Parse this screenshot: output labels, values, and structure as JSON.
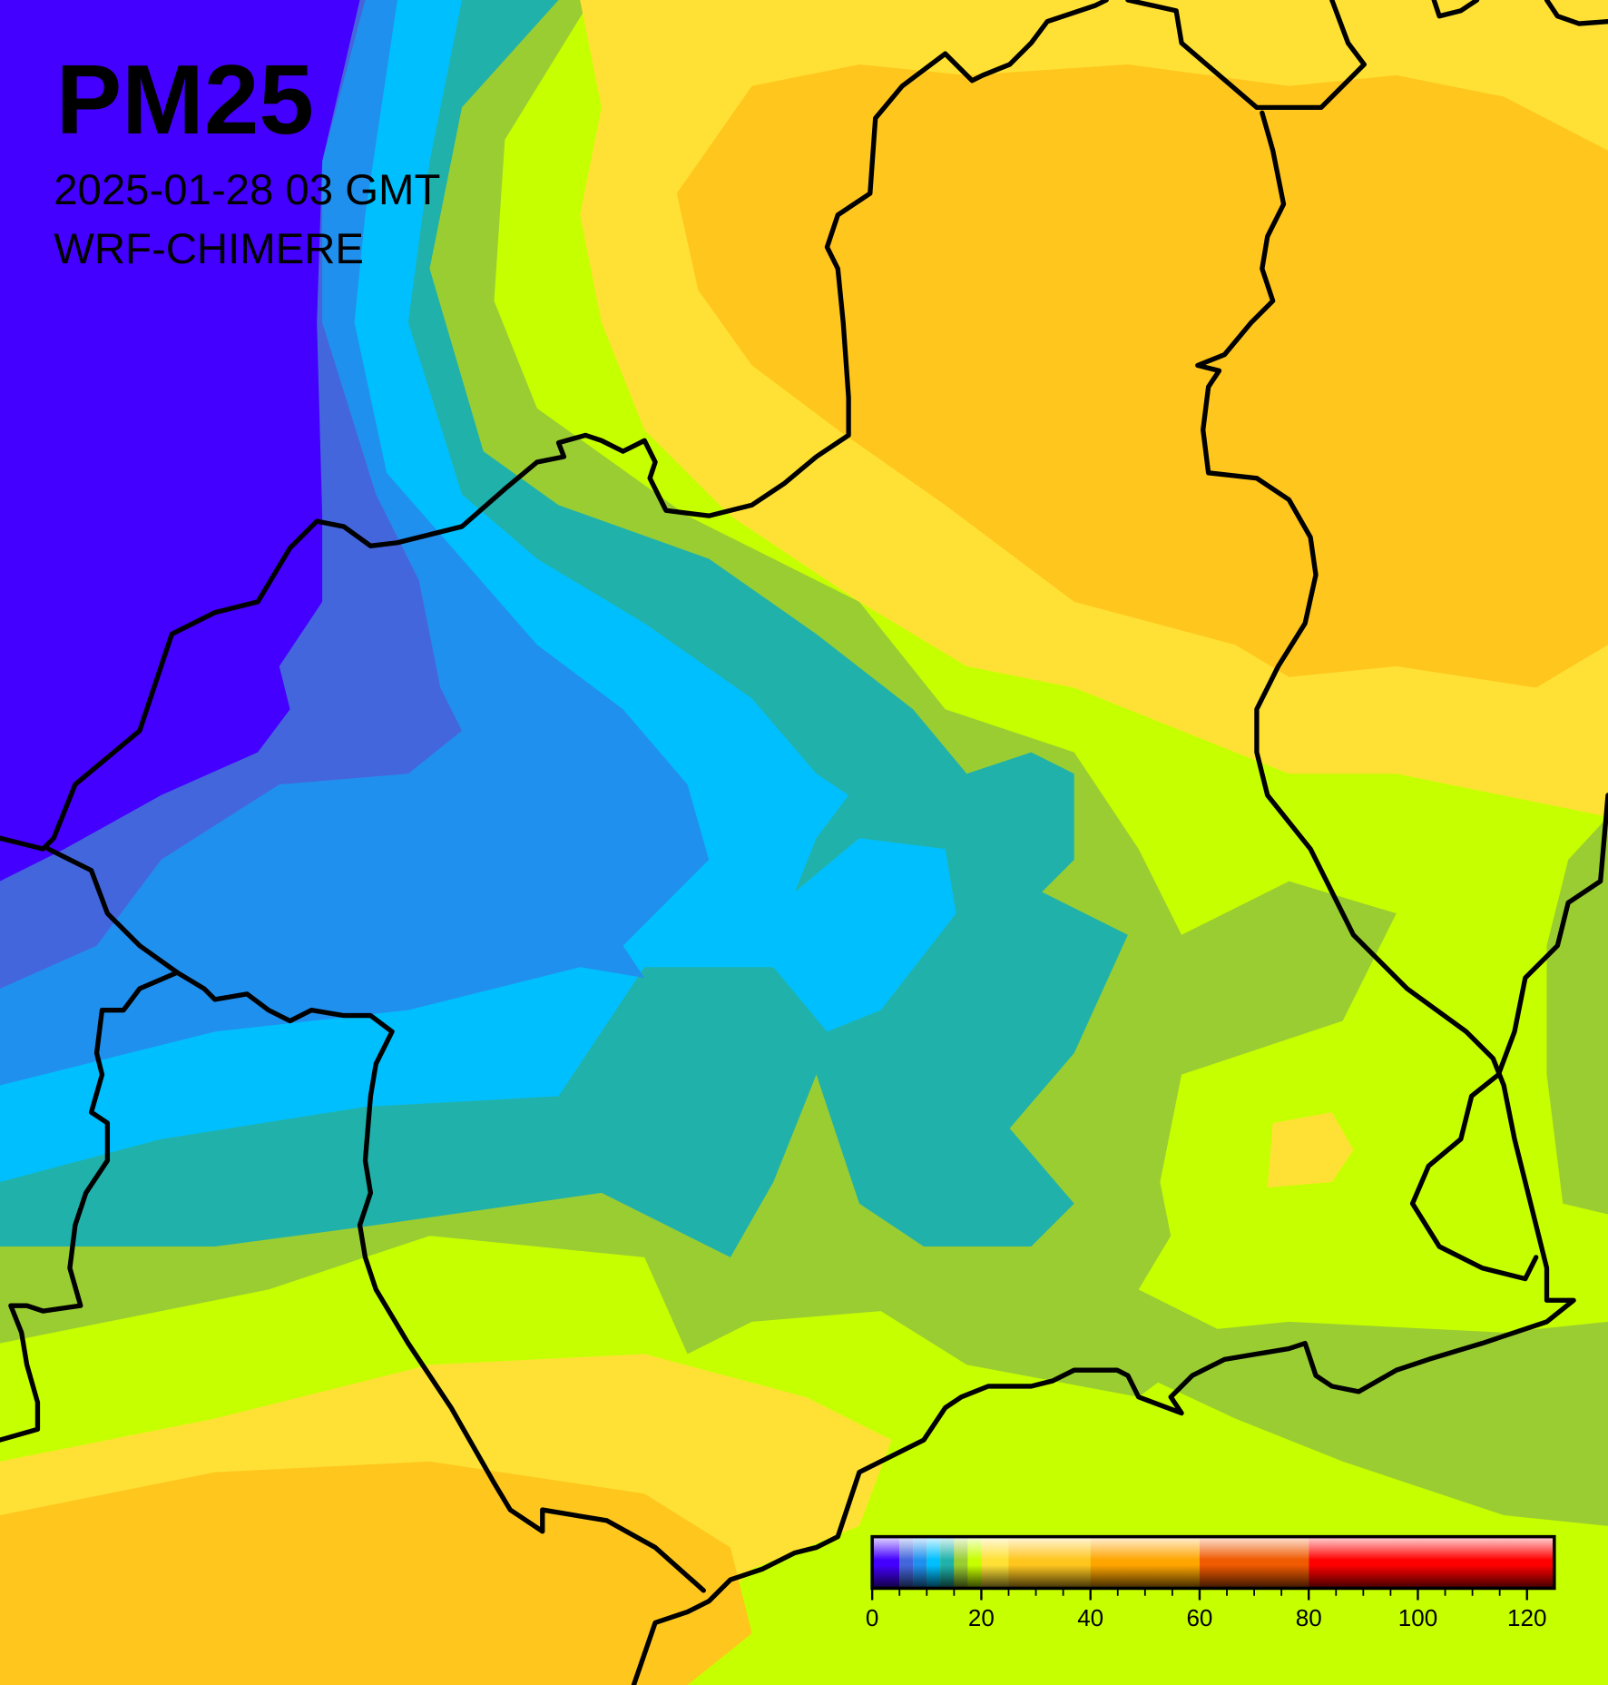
{
  "header": {
    "title": "PM25",
    "date": "2025-01-28 03 GMT",
    "model": "WRF-CHIMERE"
  },
  "colorbar": {
    "range": [
      0,
      125
    ],
    "ticks": [
      0,
      20,
      40,
      60,
      80,
      100,
      120
    ],
    "minor_ticks": [
      5,
      10,
      15,
      25,
      30,
      35,
      45,
      50,
      55,
      65,
      70,
      75,
      85,
      90,
      95,
      105,
      110,
      115
    ],
    "segments": [
      {
        "from": 0,
        "to": 5,
        "color": "#4400ff"
      },
      {
        "from": 5,
        "to": 7.5,
        "color": "#4466dd"
      },
      {
        "from": 7.5,
        "to": 10,
        "color": "#2090ee"
      },
      {
        "from": 10,
        "to": 12.5,
        "color": "#00bfff"
      },
      {
        "from": 12.5,
        "to": 15,
        "color": "#20b2aa"
      },
      {
        "from": 15,
        "to": 17.5,
        "color": "#9acd32"
      },
      {
        "from": 17.5,
        "to": 20,
        "color": "#c6ff00"
      },
      {
        "from": 20,
        "to": 25,
        "color": "#ffe135"
      },
      {
        "from": 25,
        "to": 40,
        "color": "#ffc61e"
      },
      {
        "from": 40,
        "to": 60,
        "color": "#ffa500"
      },
      {
        "from": 60,
        "to": 80,
        "color": "#f05a00"
      },
      {
        "from": 80,
        "to": 125,
        "color": "#ff0000"
      }
    ]
  }
}
